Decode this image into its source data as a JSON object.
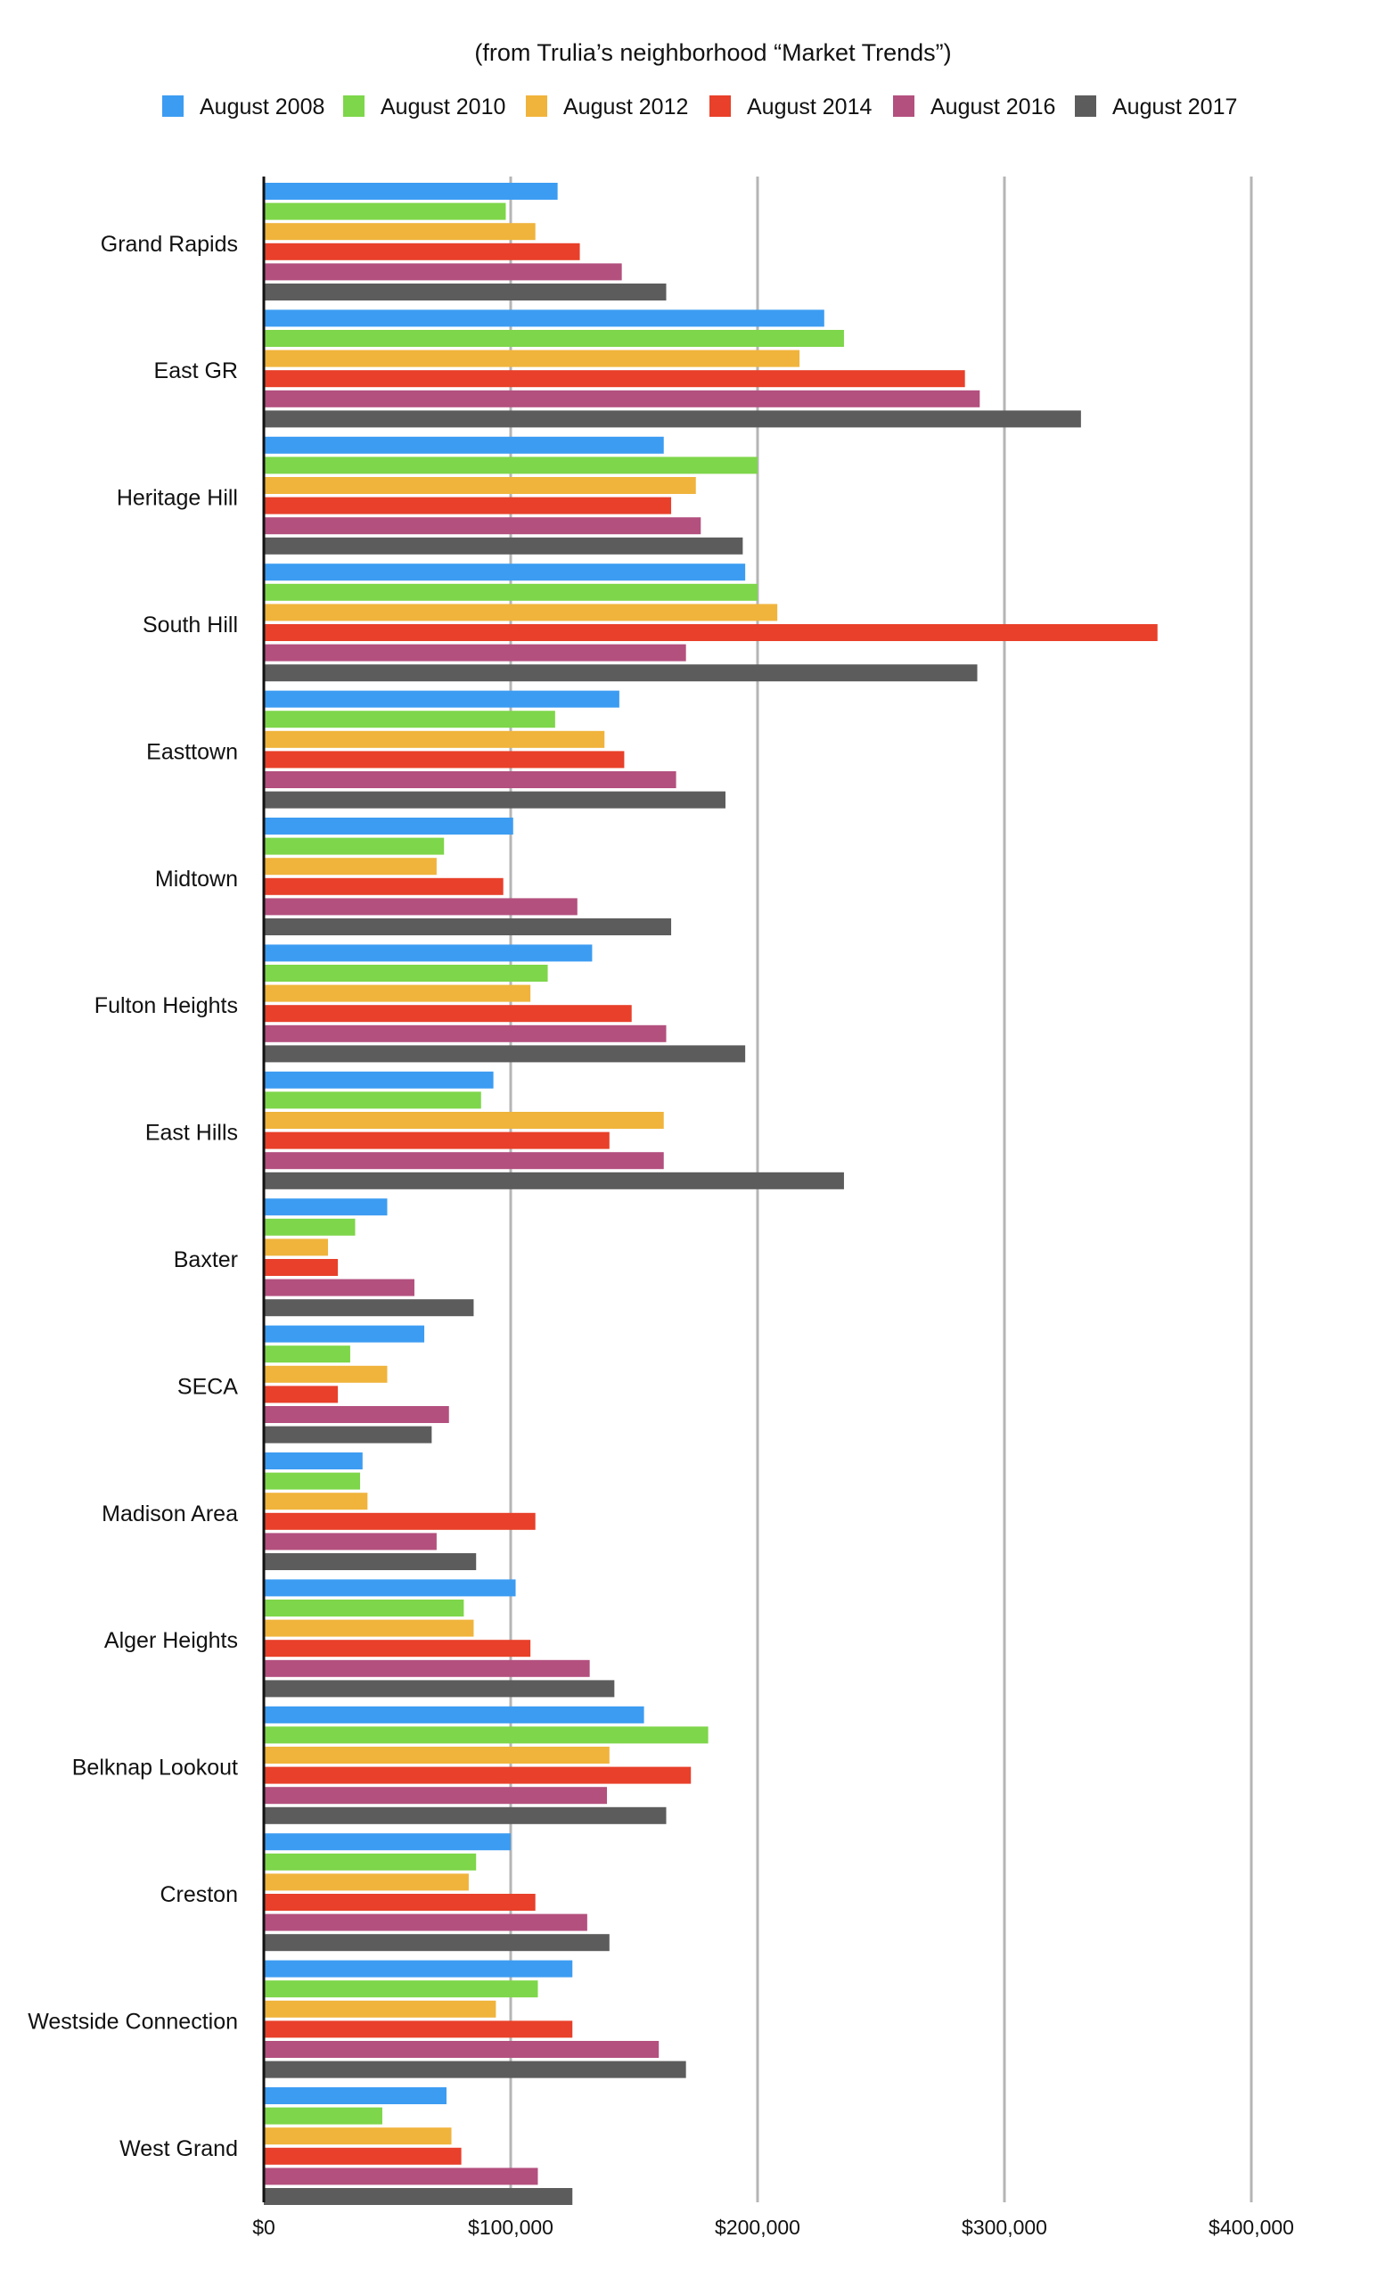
{
  "chart_data": {
    "type": "bar",
    "orientation": "horizontal",
    "title": "(from Trulia’s neighborhood “Market Trends”)",
    "xlabel": "",
    "ylabel": "",
    "xlim": [
      0,
      420000
    ],
    "x_ticks": [
      0,
      100000,
      200000,
      300000,
      400000
    ],
    "x_tick_labels": [
      "$0",
      "$100,000",
      "$200,000",
      "$300,000",
      "$400,000"
    ],
    "grid": true,
    "legend_position": "top-center",
    "categories": [
      "Grand Rapids",
      "East GR",
      "Heritage Hill",
      "South Hill",
      "Easttown",
      "Midtown",
      "Fulton Heights",
      "East Hills",
      "Baxter",
      "SECA",
      "Madison Area",
      "Alger Heights",
      "Belknap Lookout",
      "Creston",
      "Westside Connection",
      "West Grand"
    ],
    "series": [
      {
        "name": "August 2008",
        "color": "#3c9cf2",
        "values": [
          119000,
          227000,
          162000,
          195000,
          144000,
          101000,
          133000,
          93000,
          50000,
          65000,
          40000,
          102000,
          154000,
          100000,
          125000,
          74000
        ]
      },
      {
        "name": "August 2010",
        "color": "#7ed64a",
        "values": [
          98000,
          235000,
          200000,
          200000,
          118000,
          73000,
          115000,
          88000,
          37000,
          35000,
          39000,
          81000,
          180000,
          86000,
          111000,
          48000
        ]
      },
      {
        "name": "August 2012",
        "color": "#f0b43c",
        "values": [
          110000,
          217000,
          175000,
          208000,
          138000,
          70000,
          108000,
          162000,
          26000,
          50000,
          42000,
          85000,
          140000,
          83000,
          94000,
          76000
        ]
      },
      {
        "name": "August 2014",
        "color": "#e8402a",
        "values": [
          128000,
          284000,
          165000,
          362000,
          146000,
          97000,
          149000,
          140000,
          30000,
          30000,
          110000,
          108000,
          173000,
          110000,
          125000,
          80000
        ]
      },
      {
        "name": "August 2016",
        "color": "#b3507e",
        "values": [
          145000,
          290000,
          177000,
          171000,
          167000,
          127000,
          163000,
          162000,
          61000,
          75000,
          70000,
          132000,
          139000,
          131000,
          160000,
          111000
        ]
      },
      {
        "name": "August 2017",
        "color": "#5c5c5c",
        "values": [
          163000,
          331000,
          194000,
          289000,
          187000,
          165000,
          195000,
          235000,
          85000,
          68000,
          86000,
          142000,
          163000,
          140000,
          171000,
          125000
        ]
      }
    ]
  }
}
